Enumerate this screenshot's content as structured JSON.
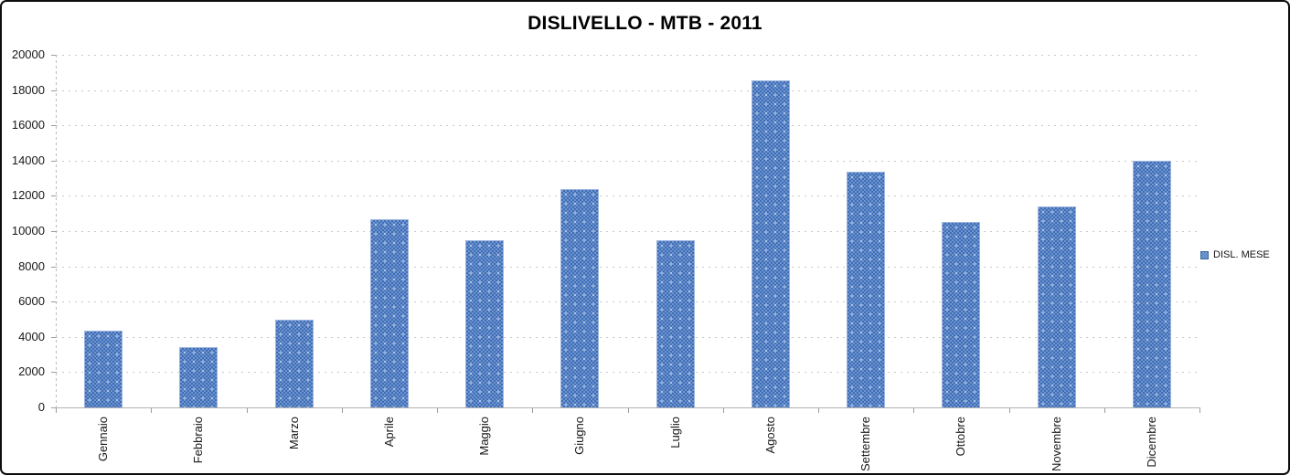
{
  "chart_data": {
    "type": "bar",
    "title": "DISLIVELLO - MTB - 2011",
    "categories": [
      "Gennaio",
      "Febbraio",
      "Marzo",
      "Aprile",
      "Maggio",
      "Giugno",
      "Luglio",
      "Agosto",
      "Settembre",
      "Ottobre",
      "Novembre",
      "Dicembre"
    ],
    "series": [
      {
        "name": "DISL. MESE",
        "values": [
          4350,
          3400,
          5000,
          10650,
          9500,
          12400,
          9500,
          18550,
          13350,
          10500,
          11400,
          14000
        ]
      }
    ],
    "xlabel": "",
    "ylabel": "",
    "ylim": [
      0,
      20000
    ],
    "y_tick_step": 2000,
    "y_tick_labels": [
      "0",
      "2000",
      "4000",
      "6000",
      "8000",
      "10000",
      "12000",
      "14000",
      "16000",
      "18000",
      "20000"
    ],
    "grid": true,
    "legend_position": "right",
    "bar_color": "#4f81bd",
    "gridline_color": "#c8c8c8"
  },
  "legend": {
    "label": "DISL. MESE"
  }
}
